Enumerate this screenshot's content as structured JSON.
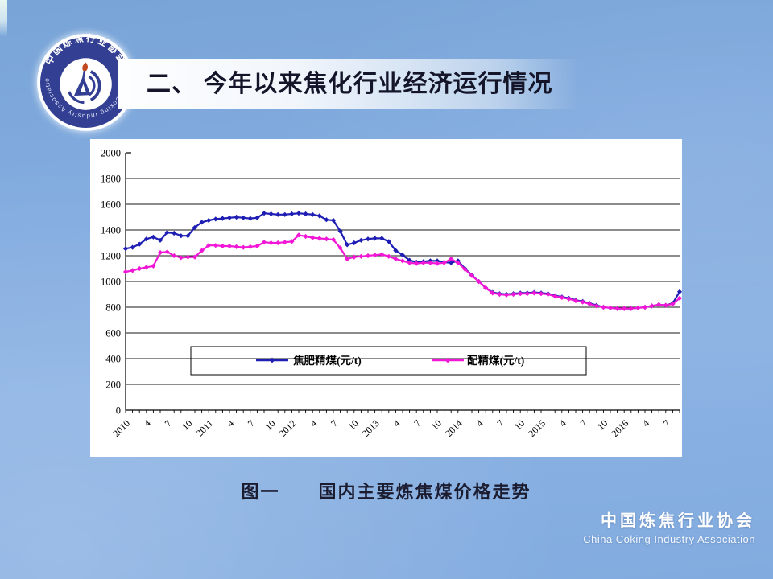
{
  "slide": {
    "title": "二、 今年以来焦化行业经济运行情况",
    "caption": "图一　　国内主要炼焦煤价格走势",
    "footer": {
      "org_cn": "中国炼焦行业协会",
      "org_en": "China Coking Industry Association"
    },
    "logo": {
      "text_top": "中国炼焦行业协会",
      "text_bottom": "China Coking Industry Association"
    }
  },
  "colors": {
    "background": "#82abdf",
    "panel": "#ffffff",
    "grid": "#1a1a1a",
    "logo_navy": "#333f93",
    "series1": "#1e1eb4",
    "series2": "#f216d6"
  },
  "chart_data": {
    "type": "line",
    "title": "",
    "xlabel": "",
    "ylabel": "",
    "ylim": [
      0,
      2000
    ],
    "ytick_step": 200,
    "grid": true,
    "legend_position": "inside-bottom",
    "x_unit": "month, Jan 2010 - Sep 2016",
    "x_label_every": 3,
    "x_tick_labels": [
      "2010",
      "4",
      "7",
      "10",
      "2011",
      "4",
      "7",
      "10",
      "2012",
      "4",
      "7",
      "10",
      "2013",
      "4",
      "7",
      "10",
      "2014",
      "4",
      "7",
      "10",
      "2015",
      "4",
      "7",
      "10",
      "2016",
      "4",
      "7"
    ],
    "series": [
      {
        "name": "焦肥精煤(元/t)",
        "color": "#1e1eb4",
        "values": [
          1255,
          1265,
          1290,
          1330,
          1345,
          1320,
          1380,
          1375,
          1355,
          1355,
          1420,
          1460,
          1475,
          1485,
          1490,
          1495,
          1500,
          1495,
          1490,
          1495,
          1530,
          1525,
          1520,
          1520,
          1525,
          1530,
          1525,
          1520,
          1510,
          1480,
          1475,
          1390,
          1285,
          1300,
          1320,
          1330,
          1335,
          1335,
          1310,
          1240,
          1205,
          1165,
          1150,
          1155,
          1160,
          1160,
          1150,
          1145,
          1160,
          1100,
          1050,
          1000,
          950,
          915,
          905,
          900,
          905,
          910,
          910,
          915,
          910,
          905,
          890,
          880,
          870,
          855,
          845,
          830,
          815,
          800,
          795,
          790,
          790,
          790,
          795,
          800,
          810,
          820,
          815,
          830,
          920
        ]
      },
      {
        "name": "配精煤(元/t)",
        "color": "#f216d6",
        "values": [
          1075,
          1085,
          1100,
          1110,
          1120,
          1225,
          1230,
          1200,
          1185,
          1190,
          1190,
          1240,
          1280,
          1280,
          1275,
          1275,
          1270,
          1265,
          1270,
          1275,
          1305,
          1300,
          1300,
          1305,
          1310,
          1360,
          1350,
          1340,
          1335,
          1330,
          1325,
          1260,
          1175,
          1190,
          1195,
          1200,
          1205,
          1210,
          1195,
          1175,
          1160,
          1145,
          1140,
          1145,
          1145,
          1140,
          1145,
          1175,
          1145,
          1095,
          1045,
          1000,
          950,
          910,
          900,
          895,
          900,
          905,
          905,
          910,
          905,
          900,
          885,
          875,
          865,
          850,
          840,
          825,
          810,
          800,
          795,
          790,
          790,
          790,
          795,
          800,
          810,
          820,
          815,
          825,
          870
        ]
      }
    ]
  }
}
